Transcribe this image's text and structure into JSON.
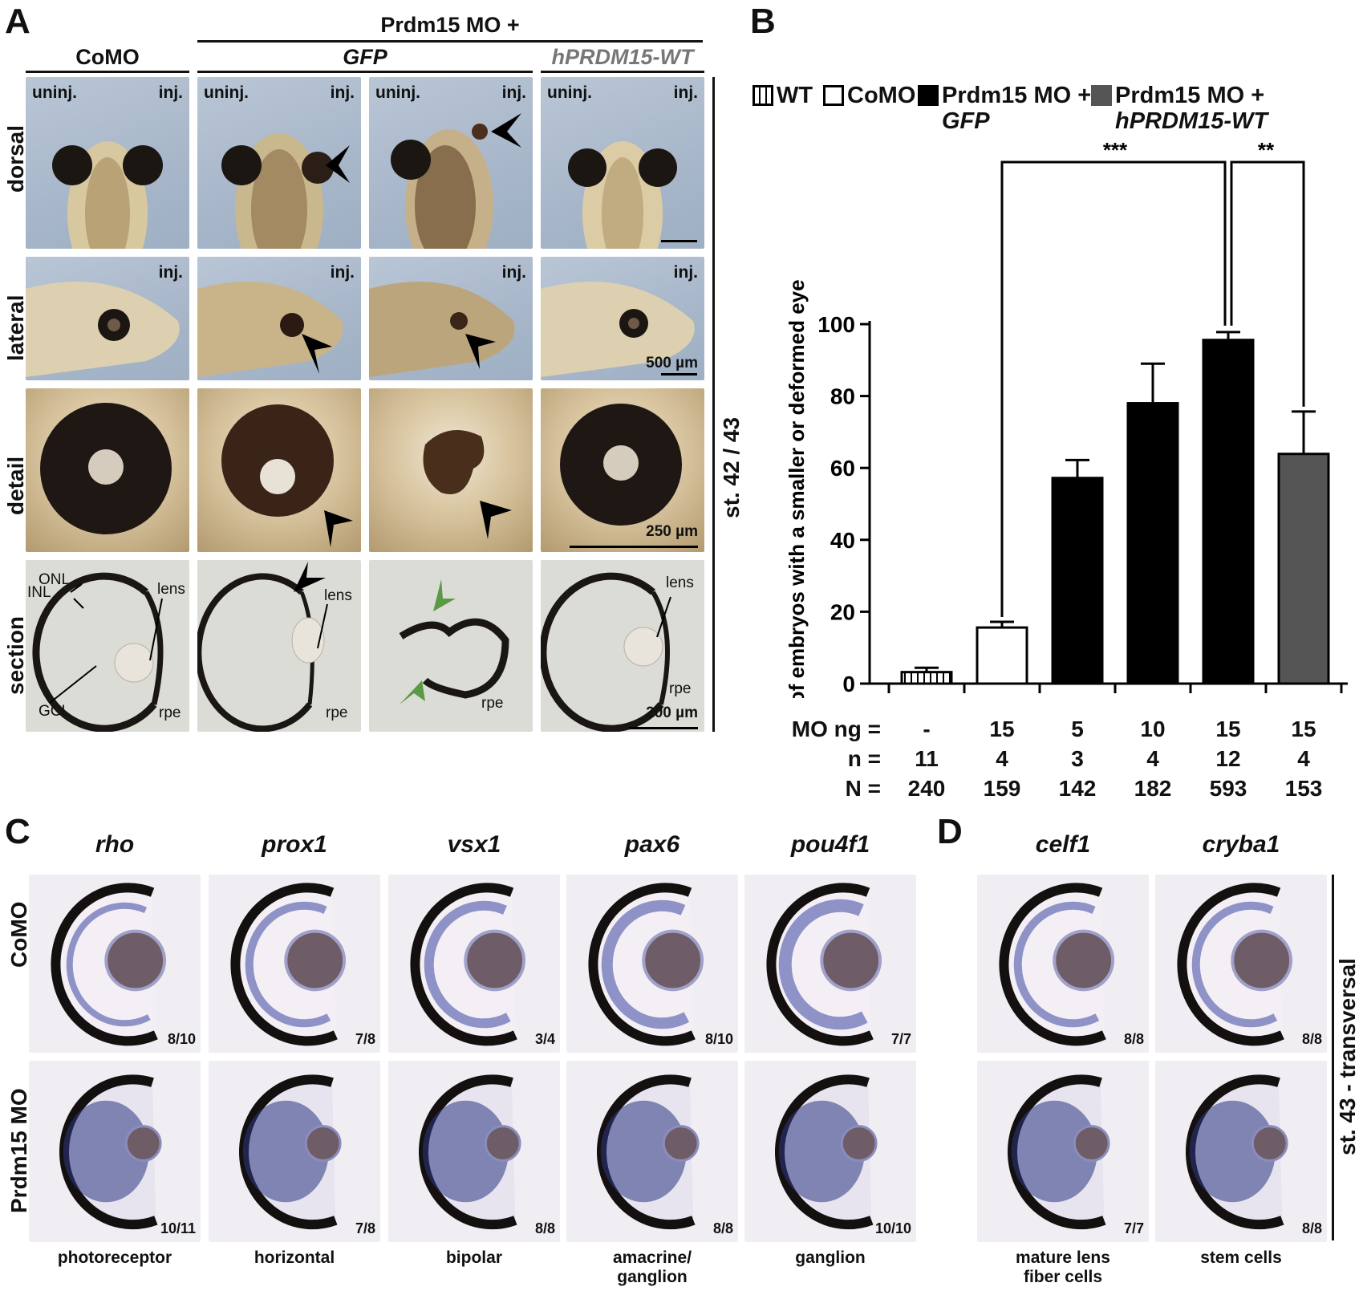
{
  "panelA": {
    "label": "A",
    "group_header": "Prdm15 MO +",
    "col_como": "CoMO",
    "col_gfp": "GFP",
    "col_wt": "hPRDM15-WT",
    "uninj": "uninj.",
    "inj": "inj.",
    "rows": [
      "dorsal",
      "lateral",
      "detail",
      "section"
    ],
    "stage": "st. 42 / 43",
    "scale_500": "500 µm",
    "scale_250": "250 µm",
    "scale_200": "200 µm",
    "labels": {
      "onl": "ONL",
      "inl": "INL",
      "gcl": "GCL",
      "lens": "lens",
      "rpe": "rpe"
    }
  },
  "panelB": {
    "label": "B",
    "legend": {
      "wt": "WT",
      "como": "CoMO",
      "gfp_line1": "Prdm15 MO +",
      "gfp_line2": "GFP",
      "hwt_line1": "Prdm15 MO +",
      "hwt_line2": "hPRDM15-WT"
    },
    "sig1": "***",
    "sig2": "**",
    "table": {
      "mo_label": "MO ng =",
      "n_label": "n =",
      "N_label": "N =",
      "mo": [
        "-",
        "15",
        "5",
        "10",
        "15",
        "15"
      ],
      "n": [
        "11",
        "4",
        "3",
        "4",
        "12",
        "4"
      ],
      "N": [
        "240",
        "159",
        "142",
        "182",
        "593",
        "153"
      ]
    },
    "colors": {
      "wt": "#ffffff",
      "como": "#ffffff",
      "gfp": "#000000",
      "hwt": "#555555"
    }
  },
  "chart_data": {
    "type": "bar",
    "categories": [
      "WT",
      "CoMO",
      "Prdm15 MO + GFP 5 ng",
      "Prdm15 MO + GFP 10 ng",
      "Prdm15 MO + GFP 15 ng",
      "Prdm15 MO + hPRDM15-WT 15 ng"
    ],
    "values": [
      3.2,
      15.6,
      57.2,
      78.0,
      95.6,
      63.9
    ],
    "errors": [
      1.2,
      1.6,
      5.0,
      11.0,
      2.2,
      11.8
    ],
    "ylabel": "% of embryos with a smaller or deformed eye",
    "xlabel": "",
    "ylim": [
      0,
      100
    ],
    "yticks": [
      0,
      20,
      40,
      60,
      80,
      100
    ],
    "grid": false
  },
  "panelC": {
    "label": "C",
    "genes": [
      "rho",
      "prox1",
      "vsx1",
      "pax6",
      "pou4f1"
    ],
    "row_como": "CoMO",
    "row_mo": "Prdm15 MO",
    "ratios_como": [
      "8/10",
      "7/8",
      "3/4",
      "8/10",
      "7/7"
    ],
    "ratios_mo": [
      "10/11",
      "7/8",
      "8/8",
      "8/8",
      "10/10"
    ],
    "cells": [
      "photoreceptor",
      "horizontal",
      "bipolar",
      "amacrine/\nganglion",
      "ganglion"
    ]
  },
  "panelD": {
    "label": "D",
    "genes": [
      "celf1",
      "cryba1"
    ],
    "ratios_como": [
      "8/8",
      "8/8"
    ],
    "ratios_mo": [
      "7/7",
      "8/8"
    ],
    "cells": [
      "mature lens\nfiber cells",
      "stem cells"
    ],
    "stage": "st. 43 - transversal"
  }
}
